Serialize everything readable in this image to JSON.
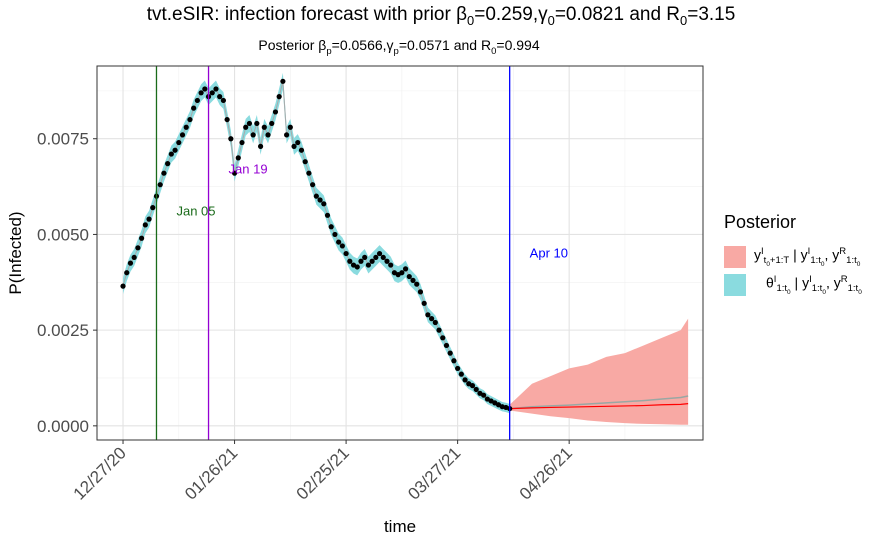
{
  "chart_data": {
    "type": "line",
    "title": "tvt.eSIR: infection forecast with prior",
    "title_parts": {
      "prefix": "tvt.eSIR: infection forecast with prior ",
      "beta_symbol": "β",
      "beta_sub": "0",
      "beta_val": "=0.259,",
      "gamma_symbol": "γ",
      "gamma_sub": "0",
      "gamma_val": "=0.0821 and R",
      "r_sub": "0",
      "r_val": "=3.15"
    },
    "subtitle_parts": {
      "prefix": "Posterior ",
      "beta_symbol": "β",
      "beta_sub": "p",
      "beta_val": "=0.0566,",
      "gamma_symbol": "γ",
      "gamma_sub": "p",
      "gamma_val": "=0.0571 and R",
      "r_sub": "0",
      "r_val": "=0.994"
    },
    "xlabel": "time",
    "ylabel": "P(Infected)",
    "x_ticks": [
      {
        "label": "12/27/20",
        "day": 0
      },
      {
        "label": "01/26/21",
        "day": 30
      },
      {
        "label": "02/25/21",
        "day": 60
      },
      {
        "label": "03/27/21",
        "day": 90
      },
      {
        "label": "04/26/21",
        "day": 120
      }
    ],
    "y_ticks": [
      {
        "label": "0.0000",
        "value": 0.0
      },
      {
        "label": "0.0025",
        "value": 0.0025
      },
      {
        "label": "0.0050",
        "value": 0.005
      },
      {
        "label": "0.0075",
        "value": 0.0075
      }
    ],
    "xlim": [
      -7,
      156
    ],
    "ylim": [
      -0.00037,
      0.0094
    ],
    "grid": true,
    "vlines": [
      {
        "label": "Jan 05",
        "day": 9,
        "color": "#1a6b1a",
        "label_value": 0.0056
      },
      {
        "label": "Jan 19",
        "day": 23,
        "color": "#9400d3",
        "label_value": 0.0067
      },
      {
        "label": "Apr 10",
        "day": 104,
        "color": "#0000ff",
        "label_value": 0.0045
      }
    ],
    "observed": {
      "name": "observed",
      "start_day": 0,
      "values": [
        0.00365,
        0.004,
        0.00425,
        0.0044,
        0.00465,
        0.0049,
        0.00525,
        0.0054,
        0.0057,
        0.006,
        0.0063,
        0.0066,
        0.00685,
        0.0071,
        0.0072,
        0.0074,
        0.0076,
        0.0078,
        0.008,
        0.0083,
        0.0085,
        0.0087,
        0.0088,
        0.0086,
        0.0087,
        0.0088,
        0.0086,
        0.0085,
        0.008,
        0.0075,
        0.0066,
        0.007,
        0.0074,
        0.0078,
        0.0079,
        0.0076,
        0.0079,
        0.0073,
        0.0078,
        0.0076,
        0.0079,
        0.0082,
        0.0086,
        0.009,
        0.0076,
        0.0078,
        0.0073,
        0.0074,
        0.0072,
        0.0069,
        0.0066,
        0.0063,
        0.006,
        0.0059,
        0.0058,
        0.0055,
        0.0052,
        0.005,
        0.0048,
        0.0047,
        0.0045,
        0.0043,
        0.0042,
        0.00415,
        0.0043,
        0.0044,
        0.0042,
        0.0043,
        0.0044,
        0.0045,
        0.0044,
        0.0043,
        0.0042,
        0.004,
        0.00395,
        0.004,
        0.0041,
        0.0039,
        0.0038,
        0.0037,
        0.0035,
        0.0032,
        0.0029,
        0.0028,
        0.0027,
        0.0025,
        0.0023,
        0.0021,
        0.0019,
        0.0017,
        0.0015,
        0.00135,
        0.0012,
        0.0011,
        0.00105,
        0.00095,
        0.00085,
        0.0008,
        0.0007,
        0.00065,
        0.0006,
        0.00055,
        0.0005,
        0.00048,
        0.00045
      ]
    },
    "fitted_band": {
      "name": "θ^I_{1:t0} | y^I_{1:t0}, y^R_{1:t0}",
      "color": "#8adbdf",
      "half_width": 0.00022
    },
    "forecast": {
      "name": "y^I_{t0+1:T} | y^I_{1:t0}, y^R_{1:t0}",
      "color": "#f8a9a4",
      "mean_color": "#ff0000",
      "median_color": "#9aa7a3",
      "days": [
        104,
        110,
        115,
        120,
        125,
        130,
        135,
        140,
        145,
        150,
        152
      ],
      "mean": [
        0.00045,
        0.00047,
        0.00048,
        0.00049,
        0.0005,
        0.00051,
        0.00052,
        0.00053,
        0.00055,
        0.00056,
        0.00058
      ],
      "median": [
        0.00045,
        0.0005,
        0.00052,
        0.00054,
        0.00057,
        0.0006,
        0.00063,
        0.00066,
        0.0007,
        0.00074,
        0.00078
      ],
      "upper": [
        0.00055,
        0.0011,
        0.0013,
        0.0015,
        0.0016,
        0.0018,
        0.0019,
        0.0021,
        0.0023,
        0.0025,
        0.0028
      ],
      "lower": [
        0.0004,
        0.00032,
        0.00025,
        0.0002,
        0.00014,
        0.0001,
        7e-05,
        5e-05,
        4e-05,
        3e-05,
        3e-05
      ]
    },
    "legend": {
      "title": "Posterior",
      "position": "right"
    }
  }
}
